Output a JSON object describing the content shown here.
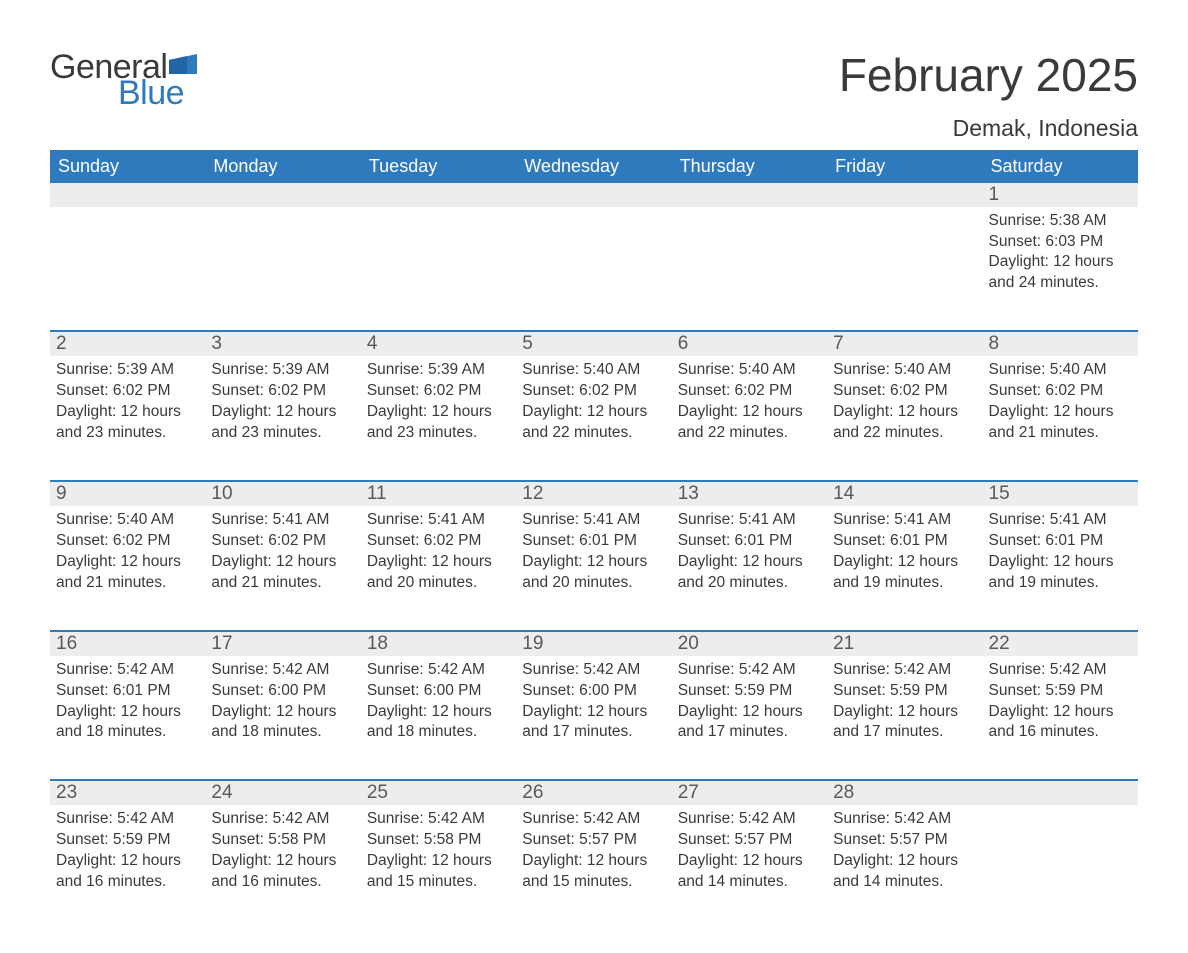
{
  "brand": {
    "word1": "General",
    "word2": "Blue",
    "word1_color": "#3a3a3a",
    "word2_color": "#2f79bd",
    "flag_color": "#2f79bd"
  },
  "header": {
    "month_title": "February 2025",
    "location": "Demak, Indonesia"
  },
  "colors": {
    "header_bg": "#2f79bd",
    "header_text": "#ffffff",
    "daynum_bg": "#ededed",
    "body_text": "#3a3a3a",
    "row_divider": "#2f79bd",
    "page_bg": "#ffffff"
  },
  "day_headers": [
    "Sunday",
    "Monday",
    "Tuesday",
    "Wednesday",
    "Thursday",
    "Friday",
    "Saturday"
  ],
  "weeks": [
    [
      null,
      null,
      null,
      null,
      null,
      null,
      {
        "n": "1",
        "sunrise": "Sunrise: 5:38 AM",
        "sunset": "Sunset: 6:03 PM",
        "daylight": "Daylight: 12 hours and 24 minutes."
      }
    ],
    [
      {
        "n": "2",
        "sunrise": "Sunrise: 5:39 AM",
        "sunset": "Sunset: 6:02 PM",
        "daylight": "Daylight: 12 hours and 23 minutes."
      },
      {
        "n": "3",
        "sunrise": "Sunrise: 5:39 AM",
        "sunset": "Sunset: 6:02 PM",
        "daylight": "Daylight: 12 hours and 23 minutes."
      },
      {
        "n": "4",
        "sunrise": "Sunrise: 5:39 AM",
        "sunset": "Sunset: 6:02 PM",
        "daylight": "Daylight: 12 hours and 23 minutes."
      },
      {
        "n": "5",
        "sunrise": "Sunrise: 5:40 AM",
        "sunset": "Sunset: 6:02 PM",
        "daylight": "Daylight: 12 hours and 22 minutes."
      },
      {
        "n": "6",
        "sunrise": "Sunrise: 5:40 AM",
        "sunset": "Sunset: 6:02 PM",
        "daylight": "Daylight: 12 hours and 22 minutes."
      },
      {
        "n": "7",
        "sunrise": "Sunrise: 5:40 AM",
        "sunset": "Sunset: 6:02 PM",
        "daylight": "Daylight: 12 hours and 22 minutes."
      },
      {
        "n": "8",
        "sunrise": "Sunrise: 5:40 AM",
        "sunset": "Sunset: 6:02 PM",
        "daylight": "Daylight: 12 hours and 21 minutes."
      }
    ],
    [
      {
        "n": "9",
        "sunrise": "Sunrise: 5:40 AM",
        "sunset": "Sunset: 6:02 PM",
        "daylight": "Daylight: 12 hours and 21 minutes."
      },
      {
        "n": "10",
        "sunrise": "Sunrise: 5:41 AM",
        "sunset": "Sunset: 6:02 PM",
        "daylight": "Daylight: 12 hours and 21 minutes."
      },
      {
        "n": "11",
        "sunrise": "Sunrise: 5:41 AM",
        "sunset": "Sunset: 6:02 PM",
        "daylight": "Daylight: 12 hours and 20 minutes."
      },
      {
        "n": "12",
        "sunrise": "Sunrise: 5:41 AM",
        "sunset": "Sunset: 6:01 PM",
        "daylight": "Daylight: 12 hours and 20 minutes."
      },
      {
        "n": "13",
        "sunrise": "Sunrise: 5:41 AM",
        "sunset": "Sunset: 6:01 PM",
        "daylight": "Daylight: 12 hours and 20 minutes."
      },
      {
        "n": "14",
        "sunrise": "Sunrise: 5:41 AM",
        "sunset": "Sunset: 6:01 PM",
        "daylight": "Daylight: 12 hours and 19 minutes."
      },
      {
        "n": "15",
        "sunrise": "Sunrise: 5:41 AM",
        "sunset": "Sunset: 6:01 PM",
        "daylight": "Daylight: 12 hours and 19 minutes."
      }
    ],
    [
      {
        "n": "16",
        "sunrise": "Sunrise: 5:42 AM",
        "sunset": "Sunset: 6:01 PM",
        "daylight": "Daylight: 12 hours and 18 minutes."
      },
      {
        "n": "17",
        "sunrise": "Sunrise: 5:42 AM",
        "sunset": "Sunset: 6:00 PM",
        "daylight": "Daylight: 12 hours and 18 minutes."
      },
      {
        "n": "18",
        "sunrise": "Sunrise: 5:42 AM",
        "sunset": "Sunset: 6:00 PM",
        "daylight": "Daylight: 12 hours and 18 minutes."
      },
      {
        "n": "19",
        "sunrise": "Sunrise: 5:42 AM",
        "sunset": "Sunset: 6:00 PM",
        "daylight": "Daylight: 12 hours and 17 minutes."
      },
      {
        "n": "20",
        "sunrise": "Sunrise: 5:42 AM",
        "sunset": "Sunset: 5:59 PM",
        "daylight": "Daylight: 12 hours and 17 minutes."
      },
      {
        "n": "21",
        "sunrise": "Sunrise: 5:42 AM",
        "sunset": "Sunset: 5:59 PM",
        "daylight": "Daylight: 12 hours and 17 minutes."
      },
      {
        "n": "22",
        "sunrise": "Sunrise: 5:42 AM",
        "sunset": "Sunset: 5:59 PM",
        "daylight": "Daylight: 12 hours and 16 minutes."
      }
    ],
    [
      {
        "n": "23",
        "sunrise": "Sunrise: 5:42 AM",
        "sunset": "Sunset: 5:59 PM",
        "daylight": "Daylight: 12 hours and 16 minutes."
      },
      {
        "n": "24",
        "sunrise": "Sunrise: 5:42 AM",
        "sunset": "Sunset: 5:58 PM",
        "daylight": "Daylight: 12 hours and 16 minutes."
      },
      {
        "n": "25",
        "sunrise": "Sunrise: 5:42 AM",
        "sunset": "Sunset: 5:58 PM",
        "daylight": "Daylight: 12 hours and 15 minutes."
      },
      {
        "n": "26",
        "sunrise": "Sunrise: 5:42 AM",
        "sunset": "Sunset: 5:57 PM",
        "daylight": "Daylight: 12 hours and 15 minutes."
      },
      {
        "n": "27",
        "sunrise": "Sunrise: 5:42 AM",
        "sunset": "Sunset: 5:57 PM",
        "daylight": "Daylight: 12 hours and 14 minutes."
      },
      {
        "n": "28",
        "sunrise": "Sunrise: 5:42 AM",
        "sunset": "Sunset: 5:57 PM",
        "daylight": "Daylight: 12 hours and 14 minutes."
      },
      null
    ]
  ]
}
